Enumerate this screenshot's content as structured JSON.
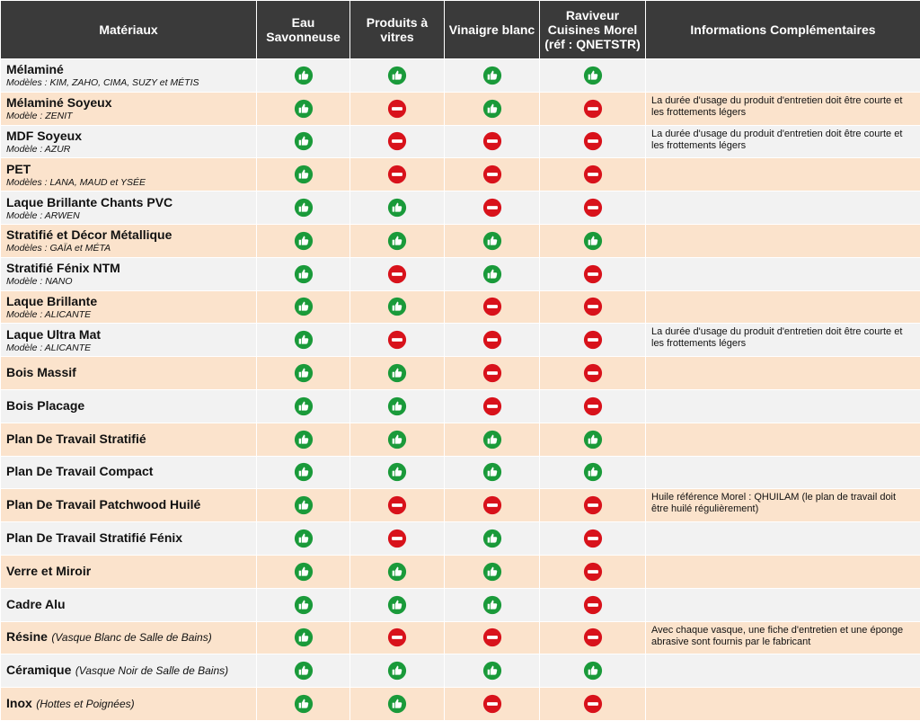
{
  "headers": [
    "Matériaux",
    "Eau Savonneuse",
    "Produits à vitres",
    "Vinaigre blanc",
    "Raviveur Cuisines Morel (réf : QNETSTR)",
    "Informations Complémentaires"
  ],
  "status_icons": {
    "ok": "thumbs-up-icon",
    "no": "no-entry-icon"
  },
  "colors": {
    "header_bg": "#3a3a3a",
    "row_light": "#f2f2f2",
    "row_peach": "#fbe3cc",
    "ok_green": "#1a9a3a",
    "no_red": "#d8121b"
  },
  "rows": [
    {
      "name": "Mélaminé",
      "note": "",
      "model": "Modèles : KIM, ZAHO, CIMA, SUZY et MÉTIS",
      "eau": "ok",
      "vitres": "ok",
      "vinaigre": "ok",
      "raviveur": "ok",
      "info": ""
    },
    {
      "name": "Mélaminé Soyeux",
      "note": "",
      "model": "Modèle : ZENIT",
      "eau": "ok",
      "vitres": "no",
      "vinaigre": "ok",
      "raviveur": "no",
      "info": "La durée d'usage du produit d'entretien doit être courte et les frottements légers"
    },
    {
      "name": "MDF Soyeux",
      "note": "",
      "model": "Modèle : AZUR",
      "eau": "ok",
      "vitres": "no",
      "vinaigre": "no",
      "raviveur": "no",
      "info": "La durée d'usage du produit d'entretien doit être courte et les frottements légers"
    },
    {
      "name": "PET",
      "note": "",
      "model": "Modèles : LANA, MAUD et YSÉE",
      "eau": "ok",
      "vitres": "no",
      "vinaigre": "no",
      "raviveur": "no",
      "info": ""
    },
    {
      "name": "Laque Brillante Chants PVC",
      "note": "",
      "model": "Modèle : ARWEN",
      "eau": "ok",
      "vitres": "ok",
      "vinaigre": "no",
      "raviveur": "no",
      "info": ""
    },
    {
      "name": "Stratifié et Décor Métallique",
      "note": "",
      "model": "Modèles : GAÏA et MÉTA",
      "eau": "ok",
      "vitres": "ok",
      "vinaigre": "ok",
      "raviveur": "ok",
      "info": ""
    },
    {
      "name": "Stratifié Fénix NTM",
      "note": "",
      "model": "Modèle : NANO",
      "eau": "ok",
      "vitres": "no",
      "vinaigre": "ok",
      "raviveur": "no",
      "info": ""
    },
    {
      "name": "Laque Brillante",
      "note": "",
      "model": "Modèle : ALICANTE",
      "eau": "ok",
      "vitres": "ok",
      "vinaigre": "no",
      "raviveur": "no",
      "info": ""
    },
    {
      "name": "Laque Ultra Mat",
      "note": "",
      "model": "Modèle : ALICANTE",
      "eau": "ok",
      "vitres": "no",
      "vinaigre": "no",
      "raviveur": "no",
      "info": "La durée d'usage du produit d'entretien doit être courte et les frottements légers"
    },
    {
      "name": "Bois Massif",
      "note": "",
      "model": "",
      "eau": "ok",
      "vitres": "ok",
      "vinaigre": "no",
      "raviveur": "no",
      "info": ""
    },
    {
      "name": "Bois Placage",
      "note": "",
      "model": "",
      "eau": "ok",
      "vitres": "ok",
      "vinaigre": "no",
      "raviveur": "no",
      "info": ""
    },
    {
      "name": "Plan De Travail Stratifié",
      "note": "",
      "model": "",
      "eau": "ok",
      "vitres": "ok",
      "vinaigre": "ok",
      "raviveur": "ok",
      "info": ""
    },
    {
      "name": "Plan De Travail Compact",
      "note": "",
      "model": "",
      "eau": "ok",
      "vitres": "ok",
      "vinaigre": "ok",
      "raviveur": "ok",
      "info": ""
    },
    {
      "name": "Plan De Travail Patchwood Huilé",
      "note": "",
      "model": "",
      "eau": "ok",
      "vitres": "no",
      "vinaigre": "no",
      "raviveur": "no",
      "info": "Huile référence Morel : QHUILAM (le plan de travail doit être huilé régulièrement)"
    },
    {
      "name": "Plan De Travail Stratifié Fénix",
      "note": "",
      "model": "",
      "eau": "ok",
      "vitres": "no",
      "vinaigre": "ok",
      "raviveur": "no",
      "info": ""
    },
    {
      "name": "Verre et Miroir",
      "note": "",
      "model": "",
      "eau": "ok",
      "vitres": "ok",
      "vinaigre": "ok",
      "raviveur": "no",
      "info": ""
    },
    {
      "name": "Cadre Alu",
      "note": "",
      "model": "",
      "eau": "ok",
      "vitres": "ok",
      "vinaigre": "ok",
      "raviveur": "no",
      "info": ""
    },
    {
      "name": "Résine",
      "note": "(Vasque Blanc de Salle de Bains)",
      "model": "",
      "eau": "ok",
      "vitres": "no",
      "vinaigre": "no",
      "raviveur": "no",
      "info": "Avec chaque vasque, une fiche d'entretien et une éponge abrasive sont fournis par le fabricant"
    },
    {
      "name": "Céramique",
      "note": "(Vasque Noir de Salle de Bains)",
      "model": "",
      "eau": "ok",
      "vitres": "ok",
      "vinaigre": "ok",
      "raviveur": "ok",
      "info": ""
    },
    {
      "name": "Inox",
      "note": "(Hottes et Poignées)",
      "model": "",
      "eau": "ok",
      "vitres": "ok",
      "vinaigre": "no",
      "raviveur": "no",
      "info": ""
    }
  ]
}
